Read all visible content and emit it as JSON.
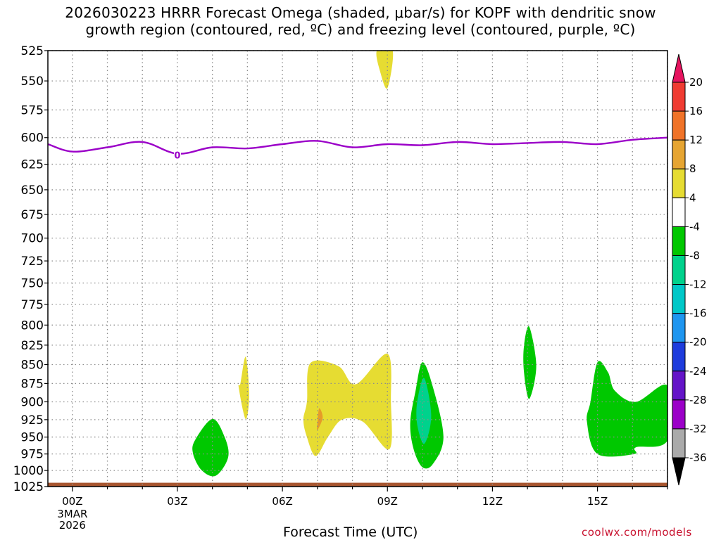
{
  "title_lines": [
    "2026030223 HRRR Forecast Omega (shaded, μbar/s) for KOPF with dendritic snow",
    "growth region (contoured, red, ºC) and freezing level (contoured, purple, ºC)"
  ],
  "footer": {
    "xlabel": "Forecast Time (UTC)",
    "credit": "coolwx.com/models"
  },
  "chart_data": {
    "type": "contour",
    "title": "2026030223 HRRR Forecast Omega (shaded, μbar/s) for KOPF with dendritic snow growth region (contoured, red, ºC) and freezing level (contoured, purple, ºC)",
    "xlabel": "Forecast Time (UTC)",
    "ylabel": "",
    "xlim": [
      -0.7,
      17.0
    ],
    "ylim_hpa": [
      1025,
      525
    ],
    "y_ticks": [
      525,
      550,
      575,
      600,
      625,
      650,
      675,
      700,
      725,
      750,
      775,
      800,
      825,
      850,
      875,
      900,
      925,
      950,
      975,
      1000,
      1025
    ],
    "x_ticks": [
      {
        "hour": 0,
        "label": "00Z",
        "sublabels": [
          "3MAR",
          "2026"
        ]
      },
      {
        "hour": 3,
        "label": "03Z",
        "sublabels": []
      },
      {
        "hour": 6,
        "label": "06Z",
        "sublabels": []
      },
      {
        "hour": 9,
        "label": "09Z",
        "sublabels": []
      },
      {
        "hour": 12,
        "label": "12Z",
        "sublabels": []
      },
      {
        "hour": 15,
        "label": "15Z",
        "sublabels": []
      }
    ],
    "grid": true,
    "freezing_level": {
      "color": "#9b00c8",
      "contour_label": "0",
      "label_at": [
        3.0,
        617
      ],
      "points": [
        [
          -0.7,
          606
        ],
        [
          0.0,
          613
        ],
        [
          1.0,
          609
        ],
        [
          2.0,
          604
        ],
        [
          3.0,
          615
        ],
        [
          4.0,
          609
        ],
        [
          5.0,
          610
        ],
        [
          6.0,
          606
        ],
        [
          7.0,
          603
        ],
        [
          8.0,
          609
        ],
        [
          9.0,
          606
        ],
        [
          10.0,
          607
        ],
        [
          11.0,
          604
        ],
        [
          12.0,
          606
        ],
        [
          13.0,
          605
        ],
        [
          14.0,
          604
        ],
        [
          15.0,
          606
        ],
        [
          16.0,
          602
        ],
        [
          17.0,
          600
        ]
      ]
    },
    "omega_regions": [
      {
        "level": 4,
        "color": "#e6dc32",
        "points": [
          [
            8.7,
            525
          ],
          [
            9.15,
            525
          ],
          [
            9.0,
            556
          ],
          [
            8.8,
            543
          ]
        ]
      },
      {
        "level": 4,
        "color": "#e6dc32",
        "points": [
          [
            4.8,
            875
          ],
          [
            4.95,
            840
          ],
          [
            5.05,
            890
          ],
          [
            4.95,
            924
          ],
          [
            4.75,
            880
          ]
        ]
      },
      {
        "level": 4,
        "color": "#e6dc32",
        "points": [
          [
            6.7,
            900
          ],
          [
            6.8,
            848
          ],
          [
            7.6,
            852
          ],
          [
            8.1,
            876
          ],
          [
            9.0,
            836
          ],
          [
            9.1,
            900
          ],
          [
            9.05,
            968
          ],
          [
            8.3,
            928
          ],
          [
            7.7,
            925
          ],
          [
            7.3,
            950
          ],
          [
            6.95,
            978
          ],
          [
            6.7,
            950
          ],
          [
            6.6,
            925
          ]
        ]
      },
      {
        "level": 8,
        "color": "#e69b28",
        "points": [
          [
            7.0,
            930
          ],
          [
            7.05,
            909
          ],
          [
            7.15,
            922
          ],
          [
            7.0,
            940
          ]
        ]
      },
      {
        "level": -4,
        "color": "#00c800",
        "points": [
          [
            9.8,
            886
          ],
          [
            10.0,
            847
          ],
          [
            10.3,
            880
          ],
          [
            10.6,
            950
          ],
          [
            10.3,
            990
          ],
          [
            10.0,
            995
          ],
          [
            9.75,
            968
          ],
          [
            9.65,
            930
          ]
        ]
      },
      {
        "level": -8,
        "color": "#00d28c",
        "points": [
          [
            9.85,
            900
          ],
          [
            10.05,
            868
          ],
          [
            10.25,
            920
          ],
          [
            10.05,
            960
          ],
          [
            9.85,
            932
          ]
        ]
      },
      {
        "level": -4,
        "color": "#00c800",
        "points": [
          [
            12.9,
            826
          ],
          [
            13.05,
            802
          ],
          [
            13.25,
            852
          ],
          [
            13.05,
            896
          ],
          [
            12.9,
            860
          ]
        ]
      },
      {
        "level": -4,
        "color": "#00c800",
        "points": [
          [
            3.5,
            955
          ],
          [
            4.0,
            924
          ],
          [
            4.35,
            950
          ],
          [
            4.45,
            980
          ],
          [
            4.1,
            1008
          ],
          [
            3.7,
            1000
          ],
          [
            3.45,
            975
          ]
        ]
      },
      {
        "level": -4,
        "color": "#00c800",
        "points": [
          [
            14.8,
            900
          ],
          [
            15.0,
            847
          ],
          [
            15.3,
            860
          ],
          [
            15.5,
            885
          ],
          [
            16.1,
            900
          ],
          [
            17.0,
            878
          ],
          [
            17.0,
            955
          ],
          [
            16.1,
            965
          ],
          [
            16.05,
            975
          ],
          [
            15.0,
            975
          ],
          [
            14.7,
            928
          ]
        ]
      }
    ],
    "ground": {
      "color": "#a8562f",
      "from_hpa": 1025,
      "top_hpa": 1019
    },
    "colorbar": {
      "labels": [
        "20",
        "16",
        "12",
        "8",
        "4",
        "-4",
        "-8",
        "-12",
        "-16",
        "-20",
        "-24",
        "-28",
        "-32",
        "-36"
      ],
      "segments": [
        {
          "color": "#e6145f"
        },
        {
          "color": "#f03c32"
        },
        {
          "color": "#f07328"
        },
        {
          "color": "#e6a532"
        },
        {
          "color": "#e6dc32"
        },
        {
          "color": "#ffffff"
        },
        {
          "color": "#00c800"
        },
        {
          "color": "#00d28c"
        },
        {
          "color": "#00c8c8"
        },
        {
          "color": "#1e96f0"
        },
        {
          "color": "#1e3cdc"
        },
        {
          "color": "#6414c8"
        },
        {
          "color": "#9b00c8"
        },
        {
          "color": "#aaaaaa"
        },
        {
          "color": "#000000"
        }
      ]
    }
  }
}
